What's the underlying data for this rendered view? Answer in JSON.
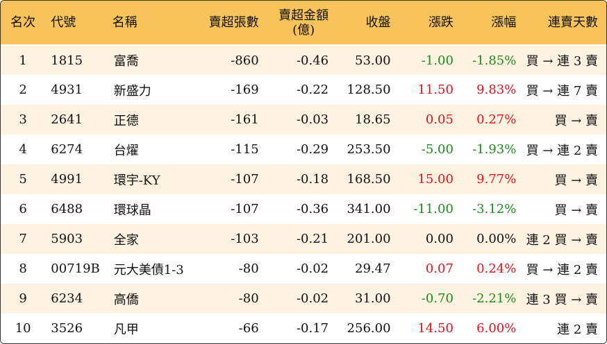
{
  "headers": {
    "rank": "名次",
    "code": "代號",
    "name": "名稱",
    "net_sell_lots": "賣超張數",
    "net_sell_amount_line1": "賣超金額",
    "net_sell_amount_line2": "(億)",
    "close": "收盤",
    "change": "漲跌",
    "change_pct": "漲幅",
    "consecutive_days": "連賣天數"
  },
  "colors": {
    "header_bg": "#f8c35a",
    "stripe_bg": "#fdf3e0",
    "up": "#e8101a",
    "down": "#1c8a1c"
  },
  "rows": [
    {
      "rank": "1",
      "code": "1815",
      "name": "富喬",
      "lots": "-860",
      "amount": "-0.46",
      "close": "53.00",
      "change": "-1.00",
      "pct": "-1.85%",
      "days": "買 → 連 3 賣",
      "dir": "down"
    },
    {
      "rank": "2",
      "code": "4931",
      "name": "新盛力",
      "lots": "-169",
      "amount": "-0.22",
      "close": "128.50",
      "change": "11.50",
      "pct": "9.83%",
      "days": "買 → 連 7 賣",
      "dir": "up"
    },
    {
      "rank": "3",
      "code": "2641",
      "name": "正德",
      "lots": "-161",
      "amount": "-0.03",
      "close": "18.65",
      "change": "0.05",
      "pct": "0.27%",
      "days": "買 → 賣",
      "dir": "up"
    },
    {
      "rank": "4",
      "code": "6274",
      "name": "台燿",
      "lots": "-115",
      "amount": "-0.29",
      "close": "253.50",
      "change": "-5.00",
      "pct": "-1.93%",
      "days": "買 → 連 2 賣",
      "dir": "down"
    },
    {
      "rank": "5",
      "code": "4991",
      "name": "環宇-KY",
      "lots": "-107",
      "amount": "-0.18",
      "close": "168.50",
      "change": "15.00",
      "pct": "9.77%",
      "days": "買 → 賣",
      "dir": "up"
    },
    {
      "rank": "6",
      "code": "6488",
      "name": "環球晶",
      "lots": "-107",
      "amount": "-0.36",
      "close": "341.00",
      "change": "-11.00",
      "pct": "-3.12%",
      "days": "買 → 賣",
      "dir": "down"
    },
    {
      "rank": "7",
      "code": "5903",
      "name": "全家",
      "lots": "-103",
      "amount": "-0.21",
      "close": "201.00",
      "change": "0.00",
      "pct": "0.00%",
      "days": "連 2 買 → 賣",
      "dir": "flat"
    },
    {
      "rank": "8",
      "code": "00719B",
      "name": "元大美債1-3",
      "lots": "-80",
      "amount": "-0.02",
      "close": "29.47",
      "change": "0.07",
      "pct": "0.24%",
      "days": "買 → 連 2 賣",
      "dir": "up"
    },
    {
      "rank": "9",
      "code": "6234",
      "name": "高僑",
      "lots": "-80",
      "amount": "-0.02",
      "close": "31.00",
      "change": "-0.70",
      "pct": "-2.21%",
      "days": "連 3 買 → 賣",
      "dir": "down"
    },
    {
      "rank": "10",
      "code": "3526",
      "name": "凡甲",
      "lots": "-66",
      "amount": "-0.17",
      "close": "256.00",
      "change": "14.50",
      "pct": "6.00%",
      "days": "連 2 賣",
      "dir": "up"
    }
  ]
}
